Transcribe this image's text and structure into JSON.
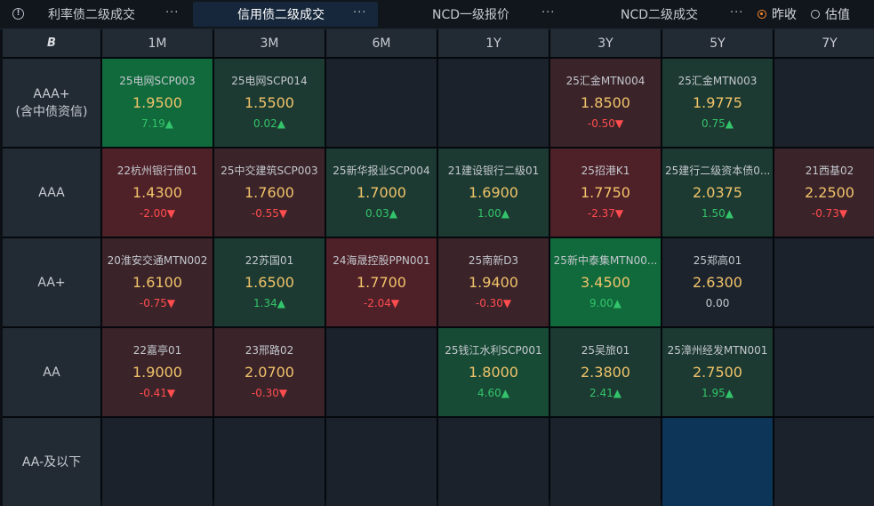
{
  "tabs": [
    {
      "label": "利率债二级成交",
      "active": false
    },
    {
      "label": "信用债二级成交",
      "active": true
    },
    {
      "label": "NCD一级报价",
      "active": false
    },
    {
      "label": "NCD二级成交",
      "active": false
    }
  ],
  "more_glyph": "···",
  "info_glyph": "!",
  "radio": [
    {
      "label": "昨收",
      "checked": true
    },
    {
      "label": "估值",
      "checked": false
    }
  ],
  "corner_logo": "B",
  "columns": [
    "1M",
    "3M",
    "6M",
    "1Y",
    "3Y",
    "5Y",
    "7Y"
  ],
  "rows": [
    {
      "label_lines": [
        "AAA+",
        "(含中债资信)"
      ],
      "cells": [
        {
          "bond": "25电网SCP003",
          "yield": "1.9500",
          "change": "7.19▲",
          "dir": "up",
          "shade": "g3"
        },
        {
          "bond": "25电网SCP014",
          "yield": "1.5500",
          "change": "0.02▲",
          "dir": "up",
          "shade": "g1"
        },
        null,
        null,
        {
          "bond": "25汇金MTN004",
          "yield": "1.8500",
          "change": "-0.50▼",
          "dir": "down",
          "shade": "r1"
        },
        {
          "bond": "25汇金MTN003",
          "yield": "1.9775",
          "change": "0.75▲",
          "dir": "up",
          "shade": "g1"
        },
        null
      ]
    },
    {
      "label_lines": [
        "AAA"
      ],
      "cells": [
        {
          "bond": "22杭州银行债01",
          "yield": "1.4300",
          "change": "-2.00▼",
          "dir": "down",
          "shade": "r2"
        },
        {
          "bond": "25中交建筑SCP003",
          "yield": "1.7600",
          "change": "-0.55▼",
          "dir": "down",
          "shade": "r1"
        },
        {
          "bond": "25新华报业SCP004",
          "yield": "1.7000",
          "change": "0.03▲",
          "dir": "up",
          "shade": "g1"
        },
        {
          "bond": "21建设银行二级01",
          "yield": "1.6900",
          "change": "1.00▲",
          "dir": "up",
          "shade": "g1"
        },
        {
          "bond": "25招港K1",
          "yield": "1.7750",
          "change": "-2.37▼",
          "dir": "down",
          "shade": "r2"
        },
        {
          "bond": "25建行二级资本债0...",
          "yield": "2.0375",
          "change": "1.50▲",
          "dir": "up",
          "shade": "g1"
        },
        {
          "bond": "21西基02",
          "yield": "2.2500",
          "change": "-0.73▼",
          "dir": "down",
          "shade": "r1"
        }
      ]
    },
    {
      "label_lines": [
        "AA+"
      ],
      "cells": [
        {
          "bond": "20淮安交通MTN002",
          "yield": "1.6100",
          "change": "-0.75▼",
          "dir": "down",
          "shade": "r1"
        },
        {
          "bond": "22苏国01",
          "yield": "1.6500",
          "change": "1.34▲",
          "dir": "up",
          "shade": "g1"
        },
        {
          "bond": "24海晟控股PPN001",
          "yield": "1.7700",
          "change": "-2.04▼",
          "dir": "down",
          "shade": "r2"
        },
        {
          "bond": "25南新D3",
          "yield": "1.9400",
          "change": "-0.30▼",
          "dir": "down",
          "shade": "r1"
        },
        {
          "bond": "25新中泰集MTN00...",
          "yield": "3.4500",
          "change": "9.00▲",
          "dir": "up",
          "shade": "g3"
        },
        {
          "bond": "25郑高01",
          "yield": "2.6300",
          "change": "0.00",
          "dir": "flat",
          "shade": "n0"
        },
        null
      ]
    },
    {
      "label_lines": [
        "AA"
      ],
      "cells": [
        {
          "bond": "22嘉亭01",
          "yield": "1.9000",
          "change": "-0.41▼",
          "dir": "down",
          "shade": "r1"
        },
        {
          "bond": "23邢路02",
          "yield": "2.0700",
          "change": "-0.30▼",
          "dir": "down",
          "shade": "r1"
        },
        null,
        {
          "bond": "25钱江水利SCP001",
          "yield": "1.8000",
          "change": "4.60▲",
          "dir": "up",
          "shade": "g2"
        },
        {
          "bond": "25吴旅01",
          "yield": "2.3800",
          "change": "2.41▲",
          "dir": "up",
          "shade": "g1"
        },
        {
          "bond": "25漳州经发MTN001",
          "yield": "2.7500",
          "change": "1.95▲",
          "dir": "up",
          "shade": "g1"
        },
        null
      ]
    },
    {
      "label_lines": [
        "AA-及以下"
      ],
      "cells": [
        null,
        null,
        null,
        null,
        null,
        {
          "blank_highlight": true
        },
        null
      ]
    }
  ],
  "colors": {
    "up": "#33c36a",
    "down": "#ff4d4f",
    "yield": "#f1c36a",
    "radio_checked": "#ff8a2a",
    "active_tab": "#16273b"
  }
}
